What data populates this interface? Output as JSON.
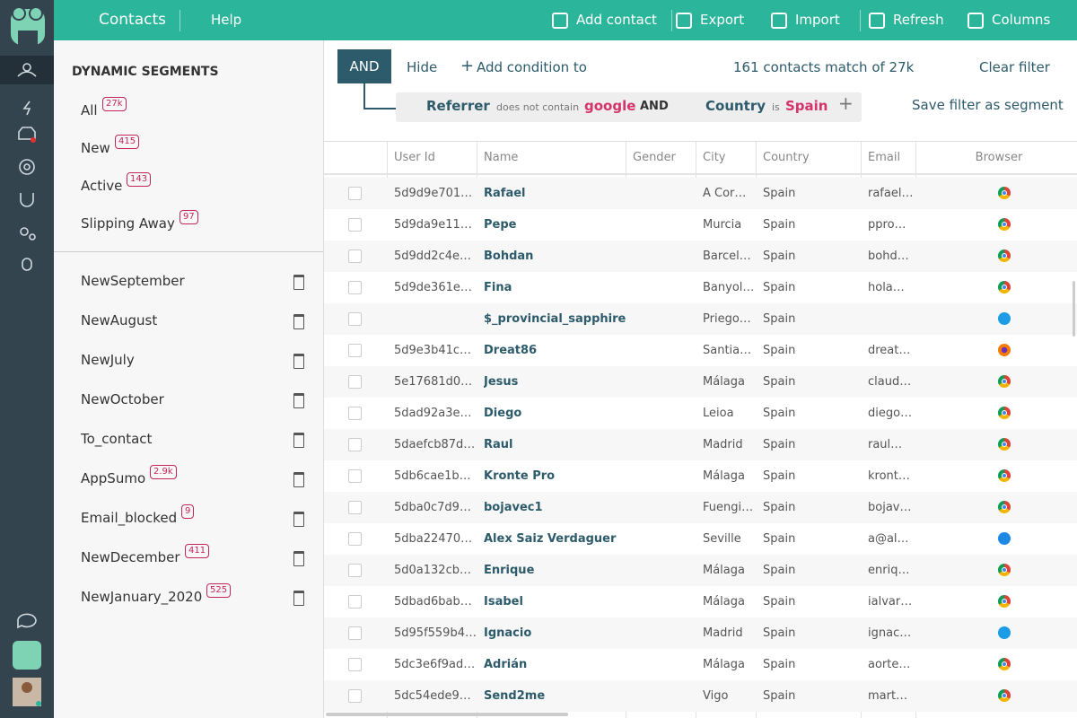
{
  "topbar": {
    "title": "Contacts",
    "help": "Help",
    "actions": [
      "Add contact",
      "Export",
      "Import",
      "Refresh",
      "Columns"
    ]
  },
  "sidebar": {
    "heading": "DYNAMIC SEGMENTS",
    "segments": [
      {
        "name": "All",
        "count": "27k"
      },
      {
        "name": "New",
        "count": "415"
      },
      {
        "name": "Active",
        "count": "143"
      },
      {
        "name": "Slipping Away",
        "count": "97"
      }
    ],
    "saved": [
      {
        "name": "NewSeptember"
      },
      {
        "name": "NewAugust"
      },
      {
        "name": "NewJuly"
      },
      {
        "name": "NewOctober"
      },
      {
        "name": "To_contact"
      },
      {
        "name": "AppSumo",
        "count": "2.9k"
      },
      {
        "name": "Email_blocked",
        "count": "9"
      },
      {
        "name": "NewDecember",
        "count": "411"
      },
      {
        "name": "NewJanuary_2020",
        "count": "525"
      }
    ]
  },
  "filter": {
    "operator": "AND",
    "hide": "Hide",
    "add_condition": "Add condition to",
    "match": "161 contacts match of 27k",
    "clear": "Clear filter",
    "conditions": [
      {
        "field": "Referrer",
        "op": "does not contain",
        "value": "google"
      },
      {
        "field": "Country",
        "op": "is",
        "value": "Spain"
      }
    ],
    "joiner": "AND",
    "save": "Save filter as segment"
  },
  "table": {
    "columns": [
      "User Id",
      "Name",
      "Gender",
      "City",
      "Country",
      "Email",
      "Browser"
    ],
    "rows": [
      [
        "5d9d9e701…",
        "Rafael",
        null,
        "A Cor…",
        "Spain",
        "rafael…"
      ],
      [
        "5d9da9e11…",
        "Pepe",
        null,
        "Murcia",
        "Spain",
        "ppro…"
      ],
      [
        "5d9dd2c4e…",
        "Bohdan",
        null,
        "Barcel…",
        "Spain",
        "bohd…"
      ],
      [
        "5d9de361e…",
        "Fina",
        null,
        "Banyol…",
        "Spain",
        "hola…"
      ],
      [
        null,
        "$_provincial_sapphire_do",
        null,
        "Priego…",
        "Spain",
        null
      ],
      [
        "5d9e3b41c…",
        "Dreat86",
        null,
        "Santia…",
        "Spain",
        "dreat…"
      ],
      [
        "5e17681d0…",
        "Jesus",
        null,
        "Málaga",
        "Spain",
        "claud…"
      ],
      [
        "5dad92a3e…",
        "Diego",
        null,
        "Leioa",
        "Spain",
        "diego…"
      ],
      [
        "5daefcb87d…",
        "Raul",
        null,
        "Madrid",
        "Spain",
        "raul…"
      ],
      [
        "5db6cae1b…",
        "Kronte Pro",
        null,
        "Málaga",
        "Spain",
        "kront…"
      ],
      [
        "5dba0c7d9…",
        "bojavec1",
        null,
        "Fuengi…",
        "Spain",
        "bojav…"
      ],
      [
        "5dba22470…",
        "Alex Saiz Verdaguer",
        null,
        "Seville",
        "Spain",
        "a@al…"
      ],
      [
        "5d0a132cb…",
        "Enrique",
        null,
        "Málaga",
        "Spain",
        "enriq…"
      ],
      [
        "5dbad6bab…",
        "Isabel",
        null,
        "Málaga",
        "Spain",
        "ialvar…"
      ],
      [
        "5d95f559b4…",
        "Ignacio",
        null,
        "Madrid",
        "Spain",
        "ignac…"
      ],
      [
        "5dc3e6f9ad…",
        "Adrián",
        null,
        "Málaga",
        "Spain",
        "aorte…"
      ],
      [
        "5dc54ede9…",
        "Send2me",
        null,
        "Vigo",
        "Spain",
        "mart…"
      ]
    ]
  }
}
